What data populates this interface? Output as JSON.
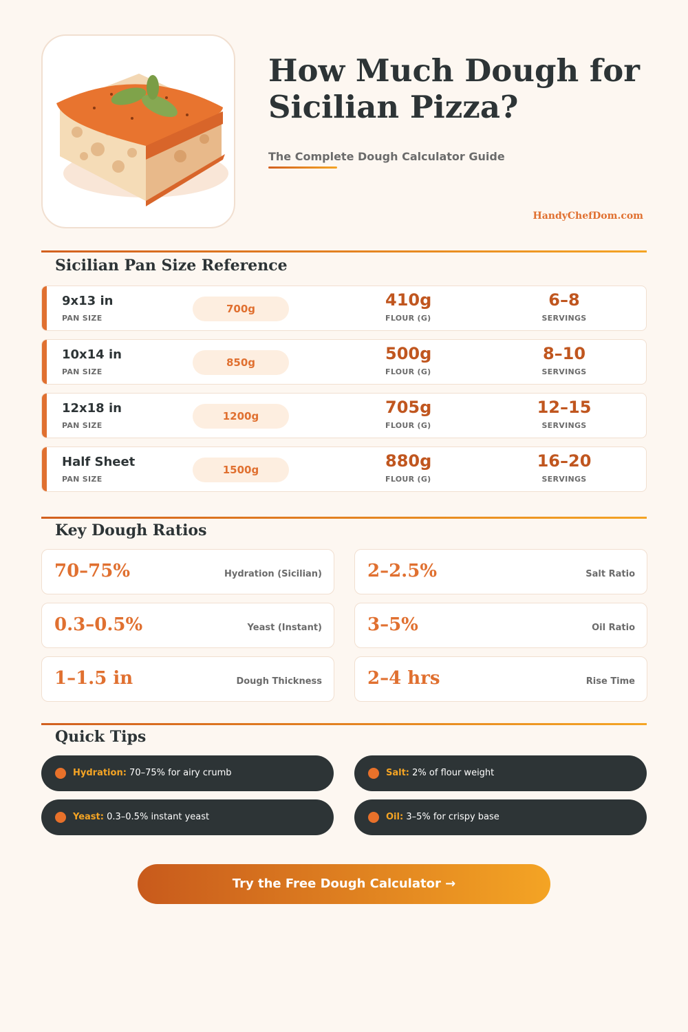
{
  "header": {
    "title_lines": [
      "How Much Dough for",
      "Sicilian Pizza?"
    ],
    "subtitle": "The Complete Dough Calculator Guide",
    "site": "HandyChefDom.com"
  },
  "pan_sizes": {
    "heading": "Sicilian Pan Size Reference",
    "column_labels": {
      "pan": "PAN SIZE",
      "flour": "FLOUR (G)",
      "servings": "SERVINGS"
    },
    "rows": [
      {
        "pan": "9x13 in",
        "dough": "700g",
        "flour": "410g",
        "servings": "6–8"
      },
      {
        "pan": "10x14 in",
        "dough": "850g",
        "flour": "500g",
        "servings": "8–10"
      },
      {
        "pan": "12x18 in",
        "dough": "1200g",
        "flour": "705g",
        "servings": "12–15"
      },
      {
        "pan": "Half Sheet",
        "dough": "1500g",
        "flour": "880g",
        "servings": "16–20"
      }
    ]
  },
  "ratios": {
    "heading": "Key Dough Ratios",
    "items": [
      {
        "value": "70–75%",
        "label": "Hydration (Sicilian)"
      },
      {
        "value": "2–2.5%",
        "label": "Salt Ratio"
      },
      {
        "value": "0.3–0.5%",
        "label": "Yeast (Instant)"
      },
      {
        "value": "3–5%",
        "label": "Oil Ratio"
      },
      {
        "value": "1–1.5 in",
        "label": "Dough Thickness"
      },
      {
        "value": "2–4 hrs",
        "label": "Rise Time"
      }
    ]
  },
  "tips": {
    "heading": "Quick Tips",
    "items": [
      {
        "label": "Hydration:",
        "text": "70–75% for airy crumb"
      },
      {
        "label": "Salt:",
        "text": "2% of flour weight"
      },
      {
        "label": "Yeast:",
        "text": "0.3–0.5% instant yeast"
      },
      {
        "label": "Oil:",
        "text": "3–5% for crispy base"
      }
    ]
  },
  "cta": "Try the Free Dough Calculator →"
}
